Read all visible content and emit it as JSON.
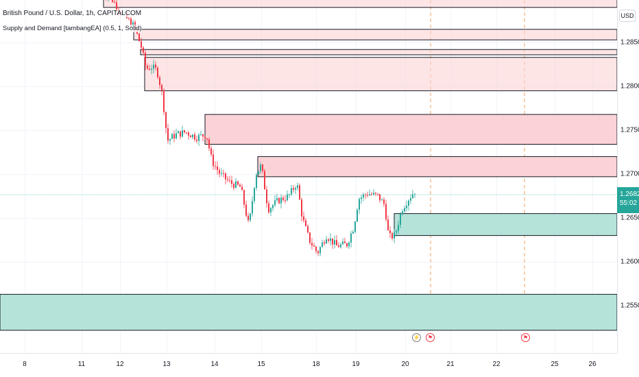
{
  "symbol_title": "British Pound / U.S. Dollar, 1h, CAPITALCOM",
  "indicator_legend": "Supply and Demand [tambangEA] (0.5, 1, Solid)",
  "currency": "USD",
  "last_price": {
    "price": "1.26821",
    "countdown": "55:02"
  },
  "colors": {
    "up": "#26a69a",
    "down": "#f23645",
    "supply_fill": "#fbd3d6",
    "demand_fill": "#b6e3d9",
    "zone_border": "#131722",
    "session_line": "#f5a15e"
  },
  "price_axis": {
    "labels": [
      "1.28500",
      "1.28000",
      "1.27500",
      "1.27000",
      "1.26500",
      "1.26000",
      "1.25500"
    ]
  },
  "time_axis": {
    "labels": [
      "8",
      "11",
      "12",
      "13",
      "14",
      "15",
      "18",
      "19",
      "20",
      "21",
      "22",
      "25",
      "26"
    ]
  },
  "event_markers": [
    {
      "icon": "lightning-icon",
      "glyph": "⚡"
    },
    {
      "icon": "flag-icon",
      "glyph": "⚑"
    },
    {
      "icon": "flag-icon",
      "glyph": "⚑"
    }
  ],
  "chart_data": {
    "type": "candlestick",
    "title": "British Pound / U.S. Dollar, 1h, CAPITALCOM",
    "ylim": [
      1.2518,
      1.2905
    ],
    "supply_zones": [
      {
        "low": 1.289,
        "high": 1.291,
        "start_day": "11"
      },
      {
        "low": 1.2853,
        "high": 1.2865,
        "start_day": "12"
      },
      {
        "low": 1.2836,
        "high": 1.2842,
        "start_day": "12"
      },
      {
        "low": 1.2795,
        "high": 1.2833,
        "start_day": "12"
      },
      {
        "low": 1.2734,
        "high": 1.2768,
        "start_day": "14"
      },
      {
        "low": 1.2697,
        "high": 1.272,
        "start_day": "15"
      }
    ],
    "demand_zones": [
      {
        "low": 1.263,
        "high": 1.2655,
        "start_day": "20"
      },
      {
        "low": 1.2522,
        "high": 1.2563,
        "start_day": "8"
      }
    ]
  }
}
